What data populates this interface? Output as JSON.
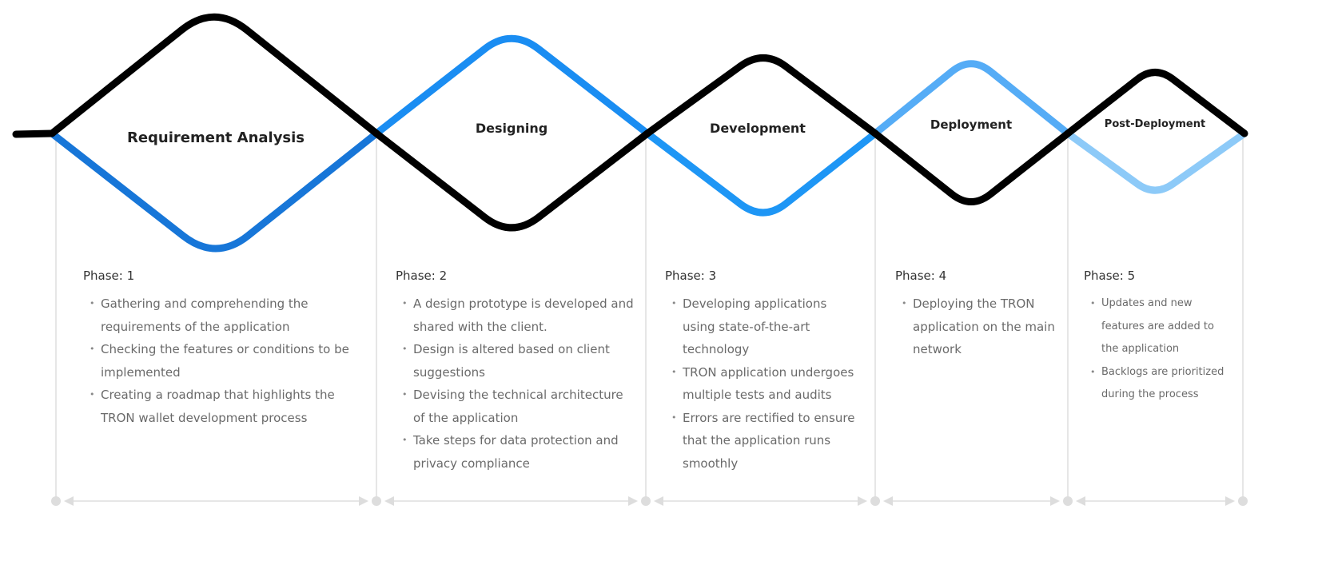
{
  "colors": {
    "black": "#000000",
    "blue1": "#1776d8",
    "blue2": "#1a8df2",
    "blue3": "#1e96f5",
    "blue4": "#55acf6",
    "blue5": "#8dcaf8",
    "guide": "#dddddd"
  },
  "phases": [
    {
      "title": "Requirement Analysis",
      "phase": "Phase: 1",
      "items": [
        "Gathering and comprehending the requirements of the application",
        "Checking the features or conditions to be implemented",
        "Creating a roadmap that highlights the TRON wallet development process"
      ]
    },
    {
      "title": "Designing",
      "phase": "Phase: 2",
      "items": [
        "A design prototype is developed and shared with the client.",
        "Design is altered based on client suggestions",
        "Devising the technical architecture of the application",
        "Take steps for data protection and privacy compliance"
      ]
    },
    {
      "title": "Development",
      "phase": "Phase: 3",
      "items": [
        "Developing applications using state-of-the-art technology",
        "TRON application undergoes multiple tests and audits",
        "Errors are rectified to ensure that the application runs smoothly"
      ]
    },
    {
      "title": "Deployment",
      "phase": "Phase: 4",
      "items": [
        "Deploying the TRON application on the main network"
      ]
    },
    {
      "title": "Post-Deployment",
      "phase": "Phase: 5",
      "items": [
        "Updates and new features are added to the application",
        "Backlogs are prioritized during the process"
      ]
    }
  ]
}
